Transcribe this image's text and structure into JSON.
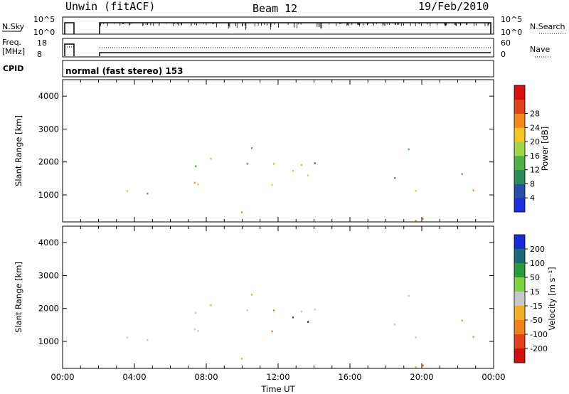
{
  "header": {
    "station": "Unwin (fitACF)",
    "beam": "Beam 12",
    "date": "19/Feb/2010"
  },
  "aux_panels": {
    "nsky_label": "N.Sky",
    "nsky_ticks": [
      "10^5",
      "10^0"
    ],
    "nsearch_label": "N.Search",
    "nsearch_ticks": [
      "10^5",
      "10^0"
    ],
    "freq_label": "Freq.",
    "freq_unit": "[MHz]",
    "freq_ticks": [
      "18",
      "8"
    ],
    "nave_label": "Nave",
    "nave_ticks": [
      "60",
      "0"
    ],
    "cpid_label": "CPID",
    "cpid_text": "normal (fast stereo) 153"
  },
  "chart_data": [
    {
      "type": "heatmap",
      "title": "",
      "xlabel": "",
      "ylabel": "Slant Range [km]",
      "ylim": [
        180,
        4500
      ],
      "yticks": [
        "1000",
        "2000",
        "3000",
        "4000"
      ],
      "colorbar": {
        "label": "Power [dB]",
        "ticks": [
          "4",
          "8",
          "12",
          "16",
          "20",
          "24",
          "28"
        ],
        "colors": [
          "#1c2ee0",
          "#2550a8",
          "#2e8a5a",
          "#4fb04a",
          "#9cd64a",
          "#f5c526",
          "#f08a1c",
          "#e0401c",
          "#d80f0f"
        ]
      }
    },
    {
      "type": "heatmap",
      "title": "",
      "xlabel": "Time UT",
      "ylabel": "Slant Range [km]",
      "ylim": [
        180,
        4500
      ],
      "yticks": [
        "1000",
        "2000",
        "3000",
        "4000"
      ],
      "xticks": [
        "00:00",
        "04:00",
        "08:00",
        "12:00",
        "16:00",
        "20:00",
        "00:00"
      ],
      "colorbar": {
        "label": "Velocity [m s⁻¹]",
        "ticks": [
          "200",
          "100",
          "50",
          "15",
          "-15",
          "-50",
          "-100",
          "-200"
        ],
        "colors": [
          "#1a2ad8",
          "#1f6a7a",
          "#2a9a3a",
          "#7ed23e",
          "#c8c8c8",
          "#f0b024",
          "#f08018",
          "#e0401a",
          "#d20f0f"
        ]
      }
    }
  ]
}
